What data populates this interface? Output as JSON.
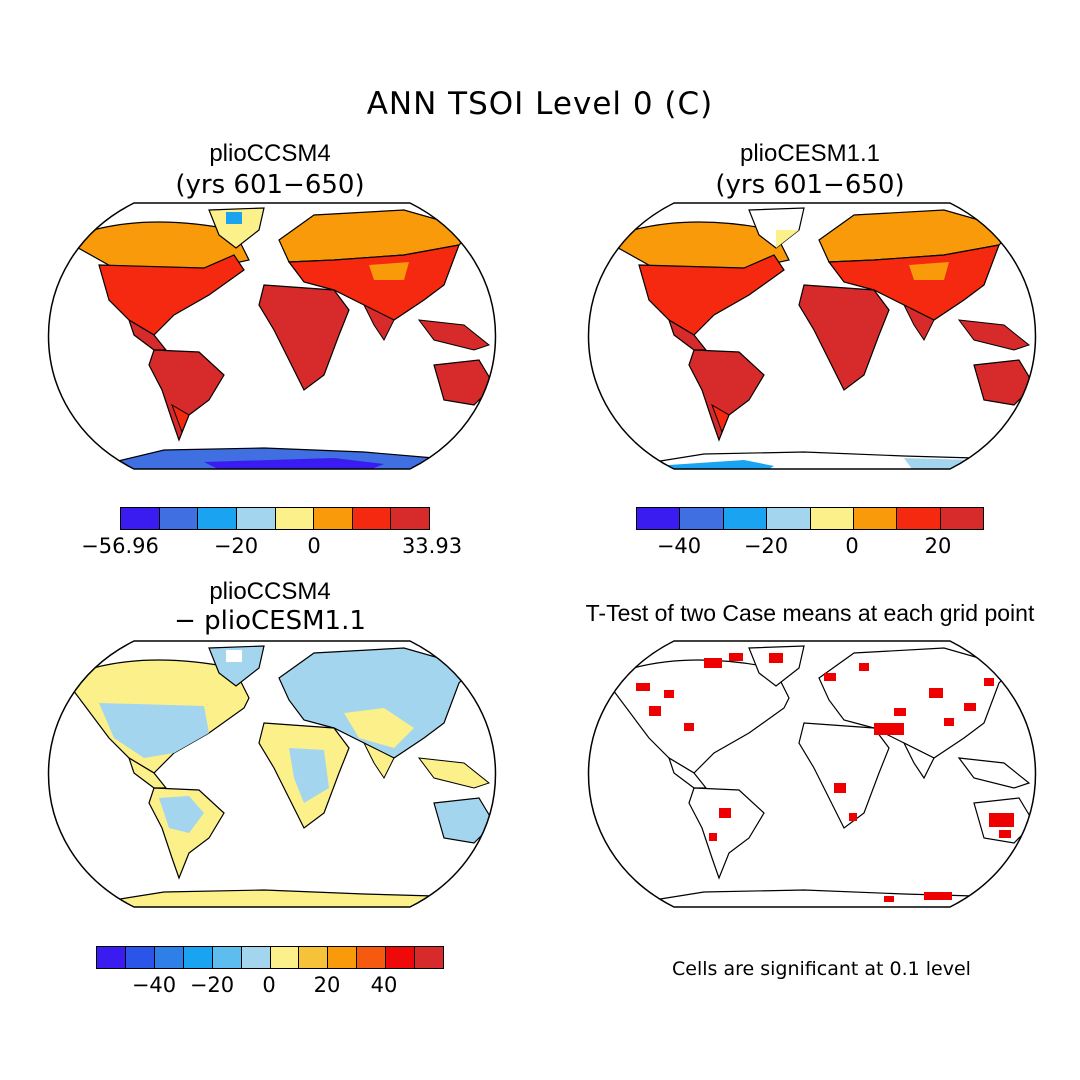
{
  "title": "ANN TSOI Level 0 (C)",
  "colors": {
    "deep_blue": "#3a1cf0",
    "blue": "#3f6fe0",
    "azure": "#1aa3f0",
    "light_blue": "#a3d5ee",
    "pale_yellow": "#fbf08a",
    "orange": "#f89a0a",
    "red": "#f52810",
    "dark_red": "#d72b2b",
    "significant": "#ee0000",
    "coast": "#000000"
  },
  "panels": {
    "top_left": {
      "title": "plioCCSM4",
      "subtitle": "(yrs 601−650)",
      "colorbar": {
        "colors": [
          "#3a1cf0",
          "#3f6fe0",
          "#1aa3f0",
          "#a3d5ee",
          "#fbf08a",
          "#f89a0a",
          "#f52810",
          "#d72b2b"
        ],
        "tick_labels": [
          "−56.96",
          "−20",
          "0",
          "33.93"
        ],
        "min": -56.96,
        "max": 33.93
      }
    },
    "top_right": {
      "title": "plioCESM1.1",
      "subtitle": "(yrs 601−650)",
      "colorbar": {
        "colors": [
          "#3a1cf0",
          "#3f6fe0",
          "#1aa3f0",
          "#a3d5ee",
          "#fbf08a",
          "#f89a0a",
          "#f52810",
          "#d72b2b"
        ],
        "tick_labels": [
          "−40",
          "−20",
          "0",
          "20"
        ],
        "min": -50,
        "max": 30
      }
    },
    "bottom_left": {
      "title": "plioCCSM4",
      "subtitle": "− plioCESM1.1",
      "colorbar": {
        "colors": [
          "#3a1cf0",
          "#2a55e8",
          "#2f7fe8",
          "#1aa3f0",
          "#5cbdee",
          "#a3d5ee",
          "#fbf08a",
          "#f6c23a",
          "#f89a0a",
          "#f55a10",
          "#ee0a0a",
          "#d72b2b"
        ],
        "tick_labels": [
          "−40",
          "−20",
          "0",
          "20",
          "40"
        ],
        "min": -60,
        "max": 60
      }
    },
    "bottom_right": {
      "title": "T-Test of two Case means at each grid point",
      "note": "Cells are significant at 0.1 level"
    }
  }
}
